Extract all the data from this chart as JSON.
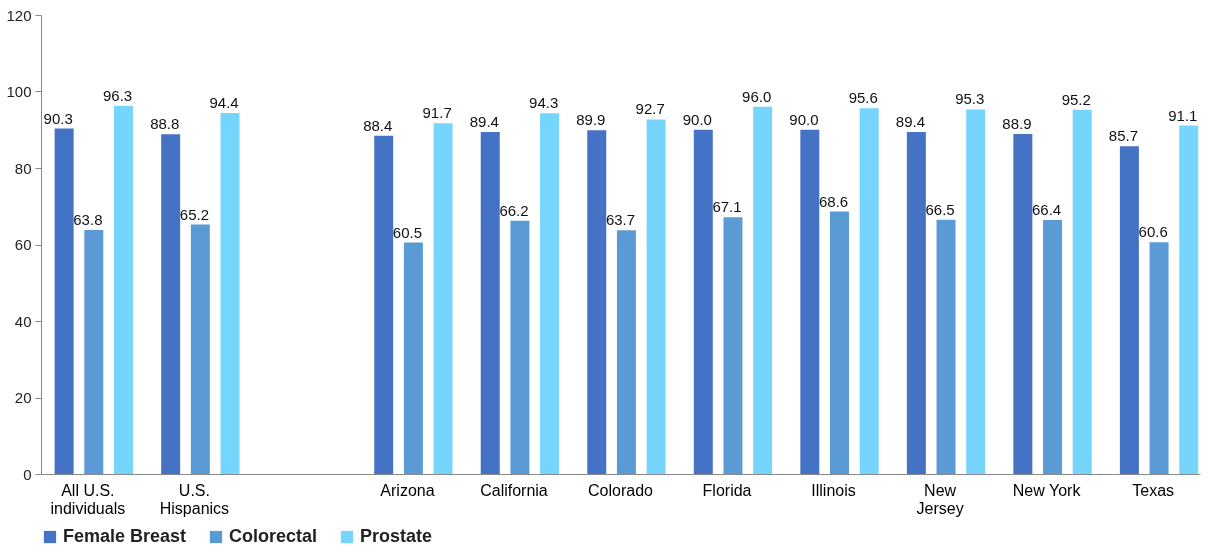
{
  "chart_data": {
    "type": "bar",
    "categories": [
      "All U.S. individuals",
      "U.S. Hispanics",
      null,
      "Arizona",
      "California",
      "Colorado",
      "Florida",
      "Illinois",
      "New Jersey",
      "New York",
      "Texas"
    ],
    "series": [
      {
        "name": "Female Breast",
        "color": "#4472c4",
        "values": [
          90.3,
          88.8,
          null,
          88.4,
          89.4,
          89.9,
          90.0,
          90.0,
          89.4,
          88.9,
          85.7
        ],
        "value_labels": [
          "90.3",
          "88.8",
          null,
          "88.4",
          "89.4",
          "89.9",
          "90.0",
          "90.0",
          "89.4",
          "88.9",
          "85.7"
        ]
      },
      {
        "name": "Colorectal",
        "color": "#5b9bd5",
        "values": [
          63.8,
          65.2,
          null,
          60.5,
          66.2,
          63.7,
          67.1,
          68.6,
          66.5,
          66.4,
          60.6
        ],
        "value_labels": [
          "63.8",
          "65.2",
          null,
          "60.5",
          "66.2",
          "63.7",
          "67.1",
          "68.6",
          "66.5",
          "66.4",
          "60.6"
        ]
      },
      {
        "name": "Prostate",
        "color": "#75d5fd",
        "values": [
          96.3,
          94.4,
          null,
          91.7,
          94.3,
          92.7,
          96.0,
          95.6,
          95.3,
          95.2,
          91.1
        ],
        "value_labels": [
          "96.3",
          "94.4",
          null,
          "91.7",
          "94.3",
          "92.7",
          "96.0",
          "95.6",
          "95.3",
          "95.2",
          "91.1"
        ]
      }
    ],
    "ylim": [
      0,
      120
    ],
    "yticks": [
      0,
      20,
      40,
      60,
      80,
      100,
      120
    ],
    "grid": false,
    "legend": "bottom"
  }
}
